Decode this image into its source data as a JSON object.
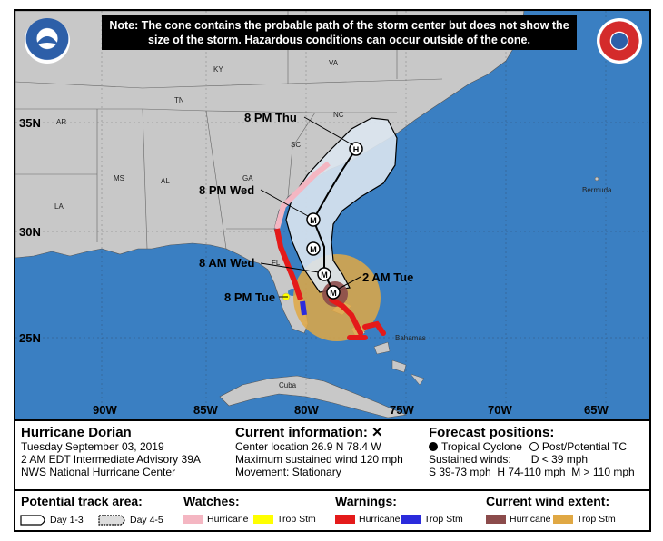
{
  "note": "Note: The cone contains the probable path of the storm center but does not show the size of the storm. Hazardous conditions can occur outside of the cone.",
  "map": {
    "latitude_labels": [
      "35N",
      "30N",
      "25N"
    ],
    "longitude_labels": [
      "90W",
      "85W",
      "80W",
      "75W",
      "70W",
      "65W"
    ],
    "states": [
      "KY",
      "VA",
      "TN",
      "NC",
      "AR",
      "SC",
      "MS",
      "AL",
      "GA",
      "LA",
      "FL"
    ],
    "places": [
      "Bermuda",
      "Bahamas",
      "Cuba"
    ],
    "forecast_labels": [
      "8 PM Thu",
      "8 PM Wed",
      "8 AM Wed",
      "8 PM Tue",
      "2 AM Tue"
    ],
    "forecast_symbols": [
      "H",
      "M",
      "M",
      "M",
      "M"
    ],
    "colors": {
      "ocean": "#3a7fc2",
      "land": "#c8c8c8",
      "cone": "#dce6f0",
      "hurricane_watch": "#f4b6c2",
      "trop_storm_watch": "#ffff00",
      "hurricane_warning": "#e41a1a",
      "trop_storm_warning": "#2b2bdc",
      "hurricane_wind": "#8b4b4b",
      "trop_storm_wind": "#e0a844"
    }
  },
  "storm": {
    "title": "Hurricane Dorian",
    "date": "Tuesday September 03, 2019",
    "advisory": "2 AM EDT Intermediate Advisory 39A",
    "center": "NWS National Hurricane Center"
  },
  "current": {
    "heading": "Current information:",
    "mark": "✕",
    "location": "Center location 26.9 N 78.4 W",
    "wind": "Maximum sustained wind 120 mph",
    "movement": "Movement: Stationary"
  },
  "forecast_positions": {
    "heading": "Forecast positions:",
    "tropical": "Tropical Cyclone",
    "post": "Post/Potential TC",
    "sustained_label": "Sustained winds:",
    "d": "D < 39 mph",
    "s": "S 39-73 mph",
    "h": "H 74-110 mph",
    "m": "M > 110 mph"
  },
  "legend": {
    "track_title": "Potential track area:",
    "day13": "Day 1-3",
    "day45": "Day 4-5",
    "watches_title": "Watches:",
    "watch_hurricane": "Hurricane",
    "watch_trop": "Trop Stm",
    "warnings_title": "Warnings:",
    "warn_hurricane": "Hurricane",
    "warn_trop": "Trop Stm",
    "wind_title": "Current wind extent:",
    "wind_hurricane": "Hurricane",
    "wind_trop": "Trop Stm"
  }
}
